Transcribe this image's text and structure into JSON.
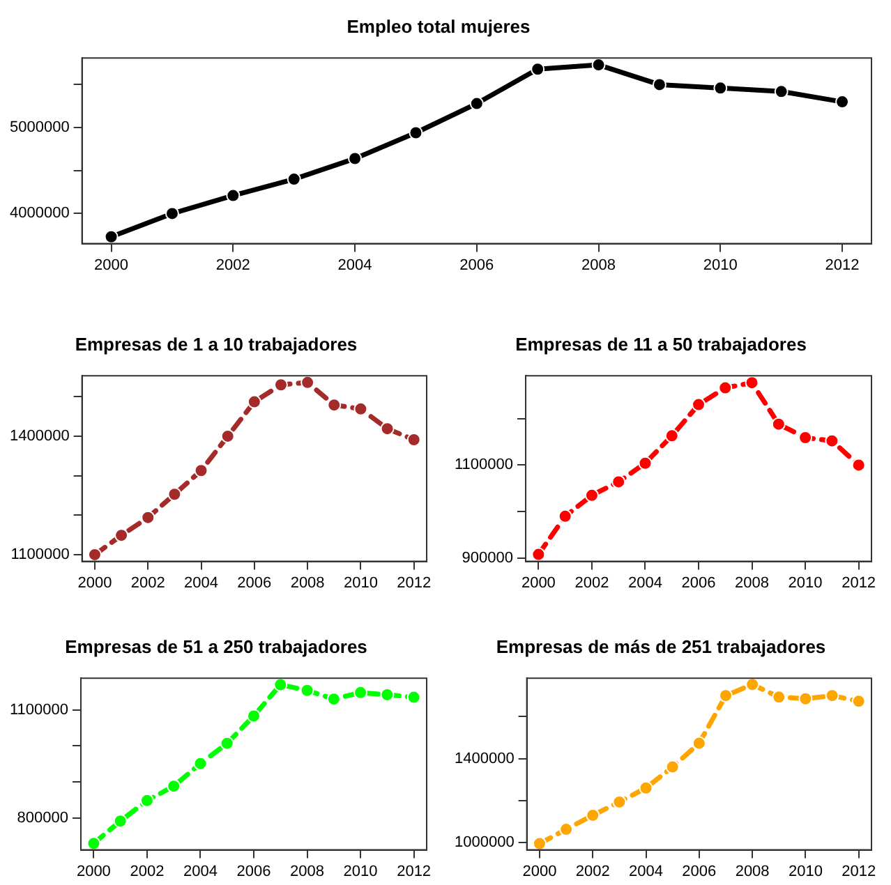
{
  "chart_data": [
    {
      "type": "line",
      "title": "Empleo total mujeres",
      "x": [
        2000,
        2001,
        2002,
        2003,
        2004,
        2005,
        2006,
        2007,
        2008,
        2009,
        2010,
        2011,
        2012
      ],
      "values": [
        3730000,
        4000000,
        4210000,
        4400000,
        4640000,
        4940000,
        5280000,
        5680000,
        5730000,
        5500000,
        5460000,
        5420000,
        5300000
      ],
      "color": "#000000",
      "xlim": [
        1999.52,
        2012.48
      ],
      "xticks": [
        2000,
        2002,
        2004,
        2006,
        2008,
        2010,
        2012
      ],
      "ylim": [
        3650000,
        5810000
      ],
      "yticks": [
        4000000,
        {
          "value": 4500000,
          "label": null
        },
        5000000,
        {
          "value": 5500000,
          "label": null
        }
      ],
      "marker": "circle",
      "line_style": "solid",
      "grid": false,
      "legend": false
    },
    {
      "type": "line",
      "title": "Empresas de 1 a 10 trabajadores",
      "x": [
        2000,
        2001,
        2002,
        2003,
        2004,
        2005,
        2006,
        2007,
        2008,
        2009,
        2010,
        2011,
        2012
      ],
      "values": [
        1100000,
        1149000,
        1194000,
        1253000,
        1313000,
        1400000,
        1487000,
        1530000,
        1536000,
        1479000,
        1469000,
        1419000,
        1391000
      ],
      "color": "#a52a2a",
      "xlim": [
        1999.52,
        2012.48
      ],
      "xticks": [
        2000,
        2002,
        2004,
        2006,
        2008,
        2010,
        2012
      ],
      "ylim": [
        1083000,
        1553000
      ],
      "yticks": [
        1100000,
        {
          "value": 1200000,
          "label": null
        },
        {
          "value": 1300000,
          "label": null
        },
        1400000,
        {
          "value": 1500000,
          "label": null
        }
      ],
      "marker": "circle",
      "line_style": "dashed",
      "grid": false,
      "legend": false
    },
    {
      "type": "line",
      "title": "Empresas de 11 a 50 trabajadores",
      "x": [
        2000,
        2001,
        2002,
        2003,
        2004,
        2005,
        2006,
        2007,
        2008,
        2009,
        2010,
        2011,
        2012
      ],
      "values": [
        908000,
        990000,
        1035000,
        1064000,
        1104000,
        1163000,
        1230000,
        1266000,
        1277000,
        1188000,
        1159000,
        1152000,
        1100000
      ],
      "color": "#ff0000",
      "xlim": [
        1999.52,
        2012.48
      ],
      "xticks": [
        2000,
        2002,
        2004,
        2006,
        2008,
        2010,
        2012
      ],
      "ylim": [
        893000,
        1292000
      ],
      "yticks": [
        900000,
        {
          "value": 1000000,
          "label": null
        },
        1100000,
        {
          "value": 1200000,
          "label": null
        }
      ],
      "marker": "circle",
      "line_style": "dashed",
      "grid": false,
      "legend": false
    },
    {
      "type": "line",
      "title": "Empresas de 51 a 250 trabajadores",
      "x": [
        2000,
        2001,
        2002,
        2003,
        2004,
        2005,
        2006,
        2007,
        2008,
        2009,
        2010,
        2011,
        2012
      ],
      "values": [
        729000,
        791000,
        848000,
        888000,
        951000,
        1007000,
        1083000,
        1170000,
        1154000,
        1130000,
        1148000,
        1142000,
        1135000
      ],
      "color": "#00ff00",
      "xlim": [
        1999.52,
        2012.48
      ],
      "xticks": [
        2000,
        2002,
        2004,
        2006,
        2008,
        2010,
        2012
      ],
      "ylim": [
        711000,
        1188000
      ],
      "yticks": [
        800000,
        {
          "value": 900000,
          "label": null
        },
        {
          "value": 1000000,
          "label": null
        },
        1100000
      ],
      "marker": "circle",
      "line_style": "dashed",
      "grid": false,
      "legend": false
    },
    {
      "type": "line",
      "title": "Empresas de más de 251 trabajadores",
      "x": [
        2000,
        2001,
        2002,
        2003,
        2004,
        2005,
        2006,
        2007,
        2008,
        2009,
        2010,
        2011,
        2012
      ],
      "values": [
        995000,
        1063000,
        1130000,
        1193000,
        1260000,
        1360000,
        1473000,
        1700000,
        1753000,
        1693000,
        1685000,
        1700000,
        1673000
      ],
      "color": "#ffa500",
      "xlim": [
        1999.52,
        2012.48
      ],
      "xticks": [
        2000,
        2002,
        2004,
        2006,
        2008,
        2010,
        2012
      ],
      "ylim": [
        965000,
        1783000
      ],
      "yticks": [
        1000000,
        {
          "value": 1200000,
          "label": null
        },
        1400000,
        {
          "value": 1600000,
          "label": null
        }
      ],
      "marker": "circle",
      "line_style": "dashed",
      "grid": false,
      "legend": false
    }
  ]
}
